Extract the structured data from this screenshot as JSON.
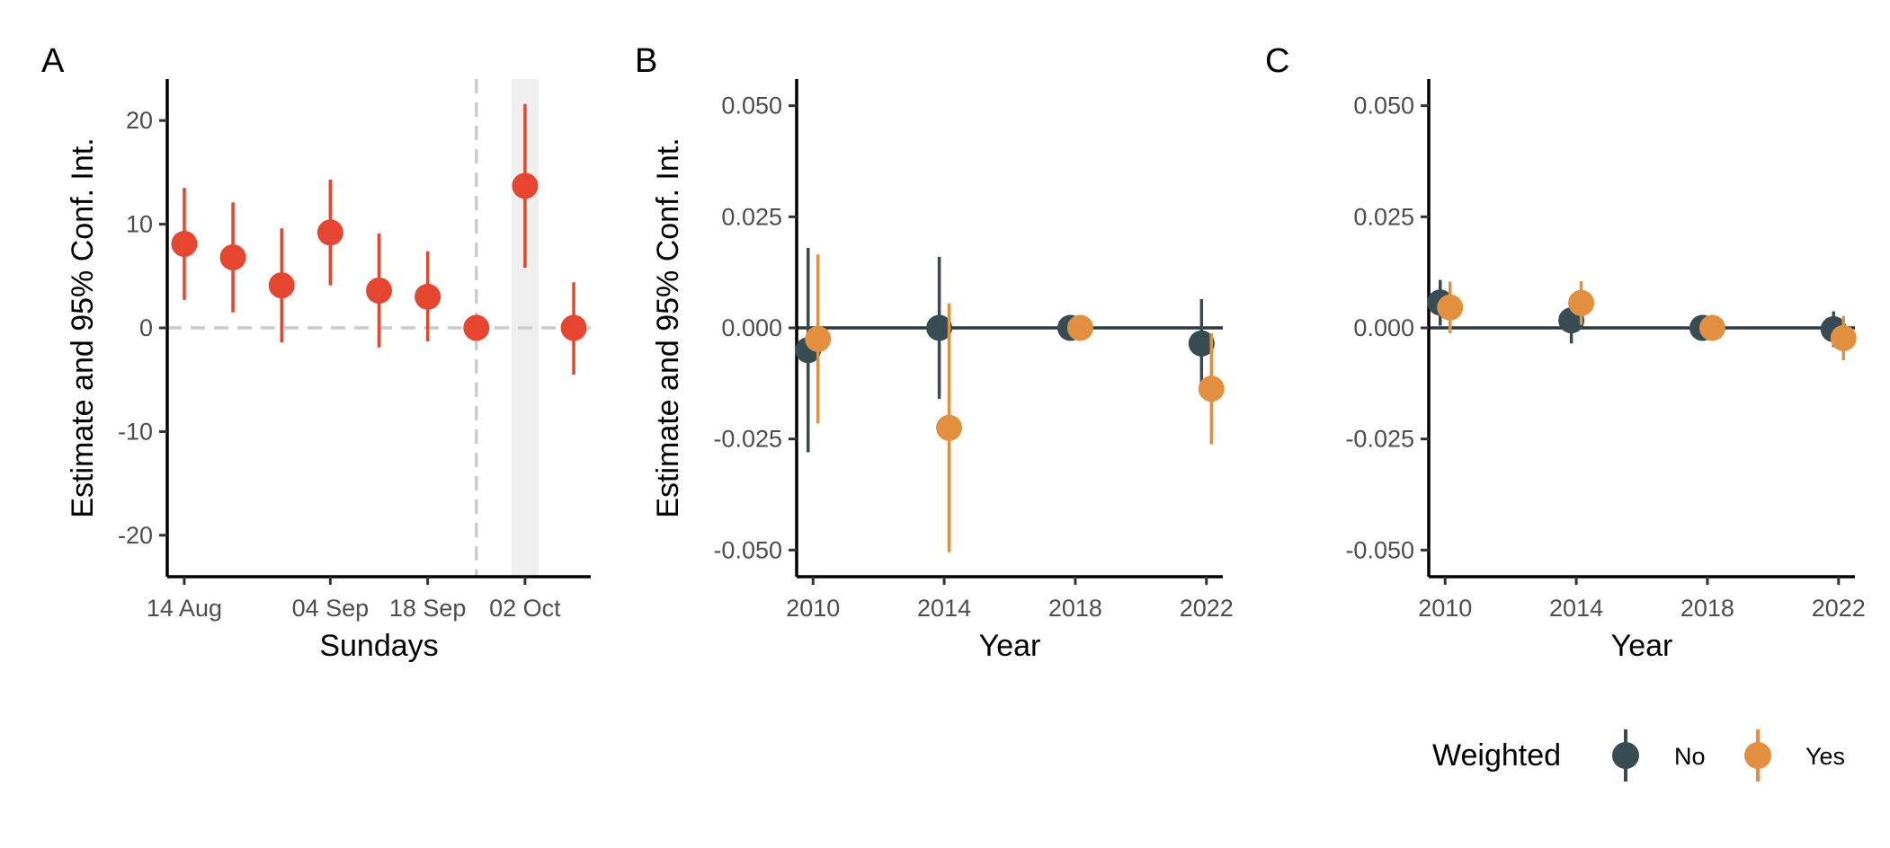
{
  "legend": {
    "title": "Weighted",
    "items": [
      {
        "label": "No",
        "color": "#364B52"
      },
      {
        "label": "Yes",
        "color": "#E28F40"
      }
    ]
  },
  "chart_data": [
    {
      "type": "scatter",
      "panel_label": "A",
      "xlabel": "Sundays",
      "ylabel": "Estimate and 95% Conf. Int.",
      "color": "#E6452F",
      "x_range": [
        -0.35,
        8.35
      ],
      "ylim": [
        -24,
        24
      ],
      "x_ticks": [
        {
          "label": "14 Aug",
          "x": 0
        },
        {
          "label": "04 Sep",
          "x": 3
        },
        {
          "label": "18 Sep",
          "x": 5
        },
        {
          "label": "02 Oct",
          "x": 7
        }
      ],
      "y_ticks": [
        -20,
        -10,
        0,
        10,
        20
      ],
      "shaded_band": [
        6.72,
        7.28
      ],
      "vline_dashed": 6,
      "hline_dashed": 0,
      "points": [
        {
          "x": 0,
          "y": 8.1,
          "low": 2.7,
          "high": 13.5
        },
        {
          "x": 1,
          "y": 6.8,
          "low": 1.5,
          "high": 12.1
        },
        {
          "x": 2,
          "y": 4.1,
          "low": -1.4,
          "high": 9.6
        },
        {
          "x": 3,
          "y": 9.2,
          "low": 4.1,
          "high": 14.3
        },
        {
          "x": 4,
          "y": 3.6,
          "low": -1.9,
          "high": 9.1
        },
        {
          "x": 5,
          "y": 3.0,
          "low": -1.3,
          "high": 7.4
        },
        {
          "x": 6,
          "y": 0.0,
          "low": 0.0,
          "high": 0.0
        },
        {
          "x": 7,
          "y": 13.7,
          "low": 5.8,
          "high": 21.6
        },
        {
          "x": 8,
          "y": 0.0,
          "low": -4.5,
          "high": 4.4
        }
      ]
    },
    {
      "type": "scatter",
      "panel_label": "B",
      "xlabel": "Year",
      "ylabel": "Estimate and 95% Conf. Int.",
      "x_range": [
        2009.5,
        2022.5
      ],
      "ylim": [
        -0.056,
        0.056
      ],
      "x_ticks": [
        2010,
        2014,
        2018,
        2022
      ],
      "y_ticks": [
        "-0.050",
        "-0.025",
        "0.000",
        "0.025",
        "0.050"
      ],
      "hline_solid": 0,
      "series": [
        {
          "name": "No",
          "color": "#364B52",
          "points": [
            {
              "x": 2010,
              "y": -0.005,
              "low": -0.028,
              "high": 0.018
            },
            {
              "x": 2014,
              "y": 0.0,
              "low": -0.016,
              "high": 0.016
            },
            {
              "x": 2018,
              "y": 0.0,
              "low": 0.0,
              "high": 0.0
            },
            {
              "x": 2022,
              "y": -0.0035,
              "low": -0.013,
              "high": 0.0065
            }
          ]
        },
        {
          "name": "Yes",
          "color": "#E28F40",
          "points": [
            {
              "x": 2010,
              "y": -0.0025,
              "low": -0.0215,
              "high": 0.0165
            },
            {
              "x": 2014,
              "y": -0.0225,
              "low": -0.0505,
              "high": 0.0055
            },
            {
              "x": 2018,
              "y": 0.0,
              "low": 0.0,
              "high": 0.0
            },
            {
              "x": 2022,
              "y": -0.0137,
              "low": -0.0262,
              "high": -0.0012
            }
          ]
        }
      ]
    },
    {
      "type": "scatter",
      "panel_label": "C",
      "xlabel": "Year",
      "ylabel": "",
      "x_range": [
        2009.5,
        2022.5
      ],
      "ylim": [
        -0.056,
        0.056
      ],
      "x_ticks": [
        2010,
        2014,
        2018,
        2022
      ],
      "y_ticks": [
        "-0.050",
        "-0.025",
        "0.000",
        "0.025",
        "0.050"
      ],
      "hline_solid": 0,
      "series": [
        {
          "name": "No",
          "color": "#364B52",
          "points": [
            {
              "x": 2010,
              "y": 0.0057,
              "low": 0.0005,
              "high": 0.0108
            },
            {
              "x": 2014,
              "y": 0.0017,
              "low": -0.0035,
              "high": 0.0068
            },
            {
              "x": 2018,
              "y": 0.0,
              "low": 0.0,
              "high": 0.0
            },
            {
              "x": 2022,
              "y": -0.0003,
              "low": -0.0043,
              "high": 0.0037
            }
          ]
        },
        {
          "name": "Yes",
          "color": "#E28F40",
          "points": [
            {
              "x": 2010,
              "y": 0.0046,
              "low": -0.0012,
              "high": 0.0104
            },
            {
              "x": 2014,
              "y": 0.0056,
              "low": 0.0007,
              "high": 0.0105
            },
            {
              "x": 2018,
              "y": 0.0,
              "low": 0.0,
              "high": 0.0
            },
            {
              "x": 2022,
              "y": -0.0023,
              "low": -0.0073,
              "high": 0.0027
            }
          ]
        }
      ]
    }
  ]
}
